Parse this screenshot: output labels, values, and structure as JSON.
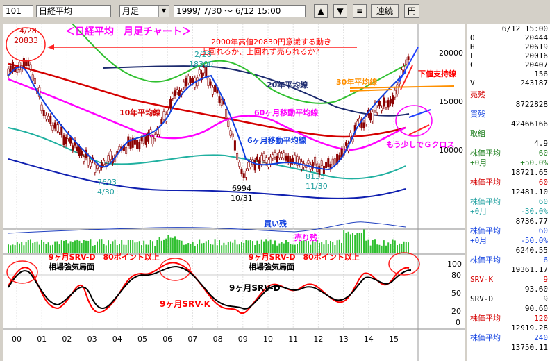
{
  "toolbar": {
    "code": "101",
    "name": "日経平均",
    "period": "月足",
    "range_start": "1999/ 7/30",
    "range_sep": "～",
    "range_end": "6/12 15:00",
    "up": "▲",
    "down": "▼",
    "menu": "≡",
    "continuous": "連続",
    "yen": "円"
  },
  "chart": {
    "title": "＜日経平均　月足チャート＞",
    "annotation_main": "2000年高値20830円意識する動き",
    "annotation_sub": "上回れるか、上回れず売られるか？",
    "high_2000": "4/28",
    "high_2000_val": "20833",
    "high_2007_date": "2/28",
    "high_2007_val": "18300",
    "low_2003_val": "7603",
    "low_2003_date": "4/30",
    "low_2008_val": "6994",
    "low_2008_date": "10/31",
    "low_2011_val": "8135",
    "low_2011_date": "11/30",
    "ma20": "20年平均線",
    "ma30": "30年平均線",
    "ma10": "10年平均線",
    "ma60": "60ヶ月移動平均線",
    "ma6": "6ヶ月移動平均線",
    "support": "下値支持線",
    "gcross": "もう少しでＧクロス",
    "volume_label": "買い残",
    "volume_label2": "売り残",
    "srv_text1": "9ヶ月SRV-D　80ポイント以上",
    "srv_text2": "相場強気局面",
    "srv_text3": "9ヶ月SRV-D　80ポイント以上",
    "srv_text4": "相場強気局面",
    "srv_d": "9ヶ月SRV-D",
    "srv_k": "9ヶ月SRV-K",
    "price_ticks": [
      "20000",
      "15000",
      "10000"
    ],
    "osc_ticks": [
      "100",
      "80",
      "50",
      "20",
      "0"
    ],
    "x_ticks": [
      "00",
      "01",
      "02",
      "03",
      "04",
      "05",
      "06",
      "07",
      "08",
      "09",
      "10",
      "11",
      "12",
      "13",
      "14",
      "15"
    ]
  },
  "panel": {
    "datetime": "6/12 15:00",
    "ohlc": [
      {
        "l": "O",
        "v": "20444"
      },
      {
        "l": "H",
        "v": "20619"
      },
      {
        "l": "L",
        "v": "20016"
      },
      {
        "l": "C",
        "v": "20407"
      },
      {
        "l": "",
        "v": "156"
      },
      {
        "l": "V",
        "v": "243187"
      }
    ],
    "rows": [
      {
        "l": "売残",
        "v": ""
      },
      {
        "l": "",
        "v": "8722828"
      },
      {
        "l": "買残",
        "v": ""
      },
      {
        "l": "",
        "v": "42466166"
      },
      {
        "l": "取組",
        "v": ""
      },
      {
        "l": "",
        "v": "4.9"
      },
      {
        "l": "株価平均",
        "v": "60"
      },
      {
        "l": "+0月",
        "v": "+50.0%"
      },
      {
        "l": "",
        "v": "18721.65"
      },
      {
        "l": "株価平均",
        "v": "60"
      },
      {
        "l": "",
        "v": "12481.10"
      },
      {
        "l": "株価平均",
        "v": "60"
      },
      {
        "l": "+0月",
        "v": "-30.0%"
      },
      {
        "l": "",
        "v": "8736.77"
      },
      {
        "l": "株価平均",
        "v": "60"
      },
      {
        "l": "+0月",
        "v": "-50.0%"
      },
      {
        "l": "",
        "v": "6240.55"
      },
      {
        "l": "株価平均",
        "v": "6"
      },
      {
        "l": "",
        "v": "19361.17"
      },
      {
        "l": "SRV-K",
        "v": "9"
      },
      {
        "l": "",
        "v": "93.60"
      },
      {
        "l": "SRV-D",
        "v": "9"
      },
      {
        "l": "",
        "v": "90.60"
      },
      {
        "l": "株価平均",
        "v": "120"
      },
      {
        "l": "",
        "v": "12919.28"
      },
      {
        "l": "株価平均",
        "v": "240"
      },
      {
        "l": "",
        "v": "13750.11"
      }
    ]
  },
  "colors": {
    "ma20": "#1c2a6e",
    "ma10": "#d40000",
    "ma60": "#ff00ff",
    "ma6": "#1040e0",
    "green": "#30c030",
    "teal": "#20b0a0",
    "candle": "#8b0000"
  }
}
